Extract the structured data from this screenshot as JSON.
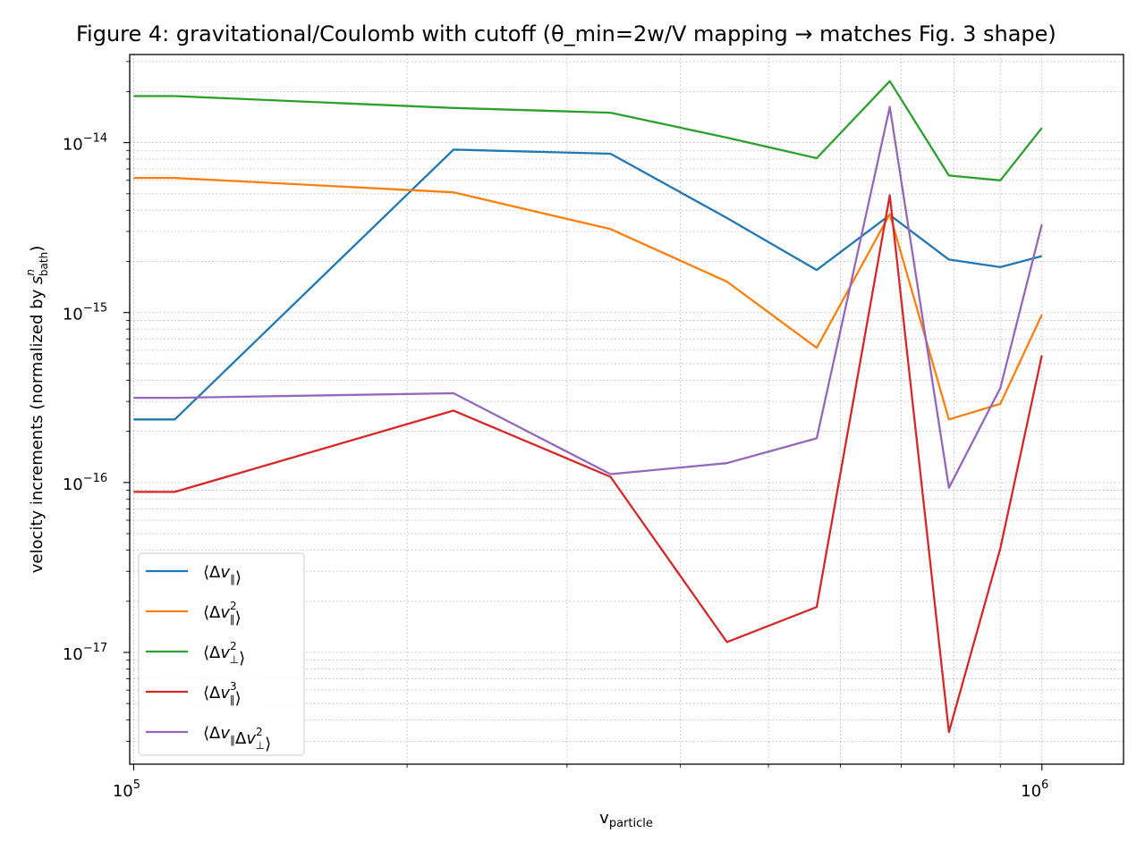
{
  "chart_data": {
    "type": "line",
    "title": "Figure 4: gravitational/Coulomb with cutoff (θ_min=2w/V mapping → matches Fig. 3 shape)",
    "xlabel": {
      "base": "v",
      "sub": "particle"
    },
    "ylabel": {
      "prefix": "velocity increments (normalized by ",
      "base": "s",
      "sup": "n",
      "sub": "bath",
      "suffix": ")"
    },
    "x_scale": "log",
    "y_scale": "log",
    "xlim": [
      99000,
      1230000
    ],
    "ylim": [
      2.2e-18,
      3.3e-14
    ],
    "grid": true,
    "legend_position": "lower-left",
    "x_ticks": [
      {
        "value": 100000,
        "base": "10",
        "exp": "5"
      },
      {
        "value": 1000000,
        "base": "10",
        "exp": "6"
      }
    ],
    "y_ticks": [
      {
        "value": 1e-14,
        "base": "10",
        "exp": "−14"
      },
      {
        "value": 1e-15,
        "base": "10",
        "exp": "−15"
      },
      {
        "value": 1e-16,
        "base": "10",
        "exp": "−16"
      },
      {
        "value": 1e-17,
        "base": "10",
        "exp": "−17"
      }
    ],
    "x": [
      100000,
      111000,
      225000,
      335000,
      450000,
      565000,
      680000,
      790000,
      900000,
      1000000
    ],
    "series": [
      {
        "name": "⟨Δv∥⟩",
        "label_parts": [
          "⟨Δ",
          "v",
          "∥",
          "",
          "⟩"
        ],
        "color": "#1f77b4",
        "values": [
          2.35e-16,
          2.35e-16,
          9.1e-15,
          8.6e-15,
          3.6e-15,
          1.78e-15,
          3.75e-15,
          2.05e-15,
          1.85e-15,
          2.15e-15
        ]
      },
      {
        "name": "⟨Δv∥²⟩",
        "label_parts": [
          "⟨Δ",
          "v",
          "∥",
          "2",
          "⟩"
        ],
        "color": "#ff7f0e",
        "values": [
          6.2e-15,
          6.2e-15,
          5.1e-15,
          3.1e-15,
          1.52e-15,
          6.2e-16,
          3.8e-15,
          2.35e-16,
          2.9e-16,
          9.7e-16
        ]
      },
      {
        "name": "⟨Δv⊥²⟩",
        "label_parts": [
          "⟨Δ",
          "v",
          "⊥",
          "2",
          "⟩"
        ],
        "color": "#2ca02c",
        "values": [
          1.88e-14,
          1.88e-14,
          1.6e-14,
          1.5e-14,
          1.07e-14,
          8.1e-15,
          2.3e-14,
          6.4e-15,
          6e-15,
          1.22e-14
        ]
      },
      {
        "name": "⟨Δv∥³⟩",
        "label_parts": [
          "⟨Δ",
          "v",
          "∥",
          "3",
          "⟩"
        ],
        "color": "#d62728",
        "values": [
          8.8e-17,
          8.8e-17,
          2.65e-16,
          1.08e-16,
          1.15e-17,
          1.85e-17,
          4.9e-15,
          3.4e-18,
          4.1e-17,
          5.6e-16
        ]
      },
      {
        "name": "⟨Δv∥Δv⊥²⟩",
        "label_parts": [
          "⟨Δ",
          "v",
          "∥",
          "",
          "Δ",
          "v",
          "⊥",
          "2",
          "⟩"
        ],
        "color": "#9467bd",
        "values": [
          3.15e-16,
          3.15e-16,
          3.35e-16,
          1.12e-16,
          1.3e-16,
          1.82e-16,
          1.62e-14,
          9.3e-17,
          3.6e-16,
          3.3e-15
        ]
      }
    ]
  }
}
